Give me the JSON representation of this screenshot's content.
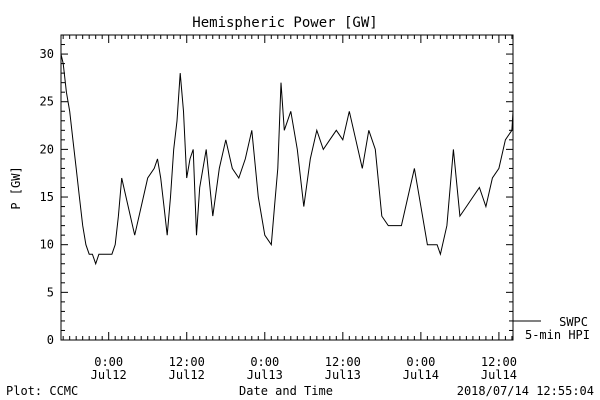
{
  "chart_data": {
    "type": "line",
    "title": "Hemispheric Power [GW]",
    "xlabel": "Date and Time",
    "ylabel": "P [GW]",
    "ylim": [
      0,
      32
    ],
    "yticks": [
      0,
      5,
      10,
      15,
      20,
      25,
      30
    ],
    "xlim": [
      "2018-07-11 16:40",
      "2018-07-14 14:10"
    ],
    "xticks": [
      {
        "x": "2018-07-12 00:00",
        "time": "0:00",
        "date": "Jul12"
      },
      {
        "x": "2018-07-12 12:00",
        "time": "12:00",
        "date": "Jul12"
      },
      {
        "x": "2018-07-13 00:00",
        "time": "0:00",
        "date": "Jul13"
      },
      {
        "x": "2018-07-13 12:00",
        "time": "12:00",
        "date": "Jul13"
      },
      {
        "x": "2018-07-14 00:00",
        "time": "0:00",
        "date": "Jul14"
      },
      {
        "x": "2018-07-14 12:00",
        "time": "12:00",
        "date": "Jul14"
      }
    ],
    "legend": {
      "source": "SWPC",
      "description": "5-min HPI",
      "placement": "right-bottom, outside"
    },
    "series": [
      {
        "x": [
          "2018-07-11 16:40",
          "2018-07-11 17:00",
          "2018-07-11 17:30",
          "2018-07-11 18:00",
          "2018-07-11 18:30",
          "2018-07-11 19:00",
          "2018-07-11 19:30",
          "2018-07-11 20:00",
          "2018-07-11 20:30",
          "2018-07-11 21:00",
          "2018-07-11 21:30",
          "2018-07-11 22:00",
          "2018-07-11 22:30",
          "2018-07-11 23:00",
          "2018-07-11 23:30",
          "2018-07-12 00:00",
          "2018-07-12 00:30",
          "2018-07-12 01:00",
          "2018-07-12 01:30",
          "2018-07-12 02:00",
          "2018-07-12 03:00",
          "2018-07-12 04:00",
          "2018-07-12 05:00",
          "2018-07-12 06:00",
          "2018-07-12 07:00",
          "2018-07-12 07:30",
          "2018-07-12 08:00",
          "2018-07-12 08:30",
          "2018-07-12 09:00",
          "2018-07-12 09:30",
          "2018-07-12 10:00",
          "2018-07-12 10:30",
          "2018-07-12 11:00",
          "2018-07-12 11:30",
          "2018-07-12 12:00",
          "2018-07-12 12:30",
          "2018-07-12 13:00",
          "2018-07-12 13:30",
          "2018-07-12 14:00",
          "2018-07-12 15:00",
          "2018-07-12 16:00",
          "2018-07-12 17:00",
          "2018-07-12 18:00",
          "2018-07-12 19:00",
          "2018-07-12 20:00",
          "2018-07-12 21:00",
          "2018-07-12 22:00",
          "2018-07-12 23:00",
          "2018-07-13 00:00",
          "2018-07-13 01:00",
          "2018-07-13 01:30",
          "2018-07-13 02:00",
          "2018-07-13 02:30",
          "2018-07-13 03:00",
          "2018-07-13 04:00",
          "2018-07-13 05:00",
          "2018-07-13 06:00",
          "2018-07-13 07:00",
          "2018-07-13 08:00",
          "2018-07-13 09:00",
          "2018-07-13 10:00",
          "2018-07-13 11:00",
          "2018-07-13 12:00",
          "2018-07-13 13:00",
          "2018-07-13 14:00",
          "2018-07-13 15:00",
          "2018-07-13 16:00",
          "2018-07-13 17:00",
          "2018-07-13 18:00",
          "2018-07-13 19:00",
          "2018-07-13 20:00",
          "2018-07-13 21:00",
          "2018-07-13 22:00",
          "2018-07-13 23:00",
          "2018-07-14 00:00",
          "2018-07-14 01:00",
          "2018-07-14 02:00",
          "2018-07-14 02:30",
          "2018-07-14 03:00",
          "2018-07-14 04:00",
          "2018-07-14 05:00",
          "2018-07-14 06:00",
          "2018-07-14 07:00",
          "2018-07-14 08:00",
          "2018-07-14 09:00",
          "2018-07-14 10:00",
          "2018-07-14 11:00",
          "2018-07-14 12:00",
          "2018-07-14 13:00",
          "2018-07-14 14:00",
          "2018-07-14 14:10"
        ],
        "y": [
          30,
          29,
          26,
          24,
          21,
          18,
          15,
          12,
          10,
          9,
          9,
          8,
          9,
          9,
          9,
          9,
          9,
          10,
          13,
          17,
          14,
          11,
          14,
          17,
          18,
          19,
          17,
          14,
          11,
          15,
          20,
          23,
          28,
          24,
          17,
          19,
          20,
          11,
          16,
          20,
          13,
          18,
          21,
          18,
          17,
          19,
          22,
          15,
          11,
          10,
          14,
          18,
          27,
          22,
          24,
          20,
          14,
          19,
          22,
          20,
          21,
          22,
          21,
          24,
          21,
          18,
          22,
          20,
          13,
          12,
          12,
          12,
          15,
          18,
          14,
          10,
          10,
          10,
          9,
          12,
          20,
          13,
          14,
          15,
          16,
          14,
          17,
          18,
          21,
          22,
          24
        ]
      }
    ]
  },
  "footer": {
    "left": "Plot: CCMC",
    "center": "Date and Time",
    "right": "2018/07/14 12:55:04"
  }
}
